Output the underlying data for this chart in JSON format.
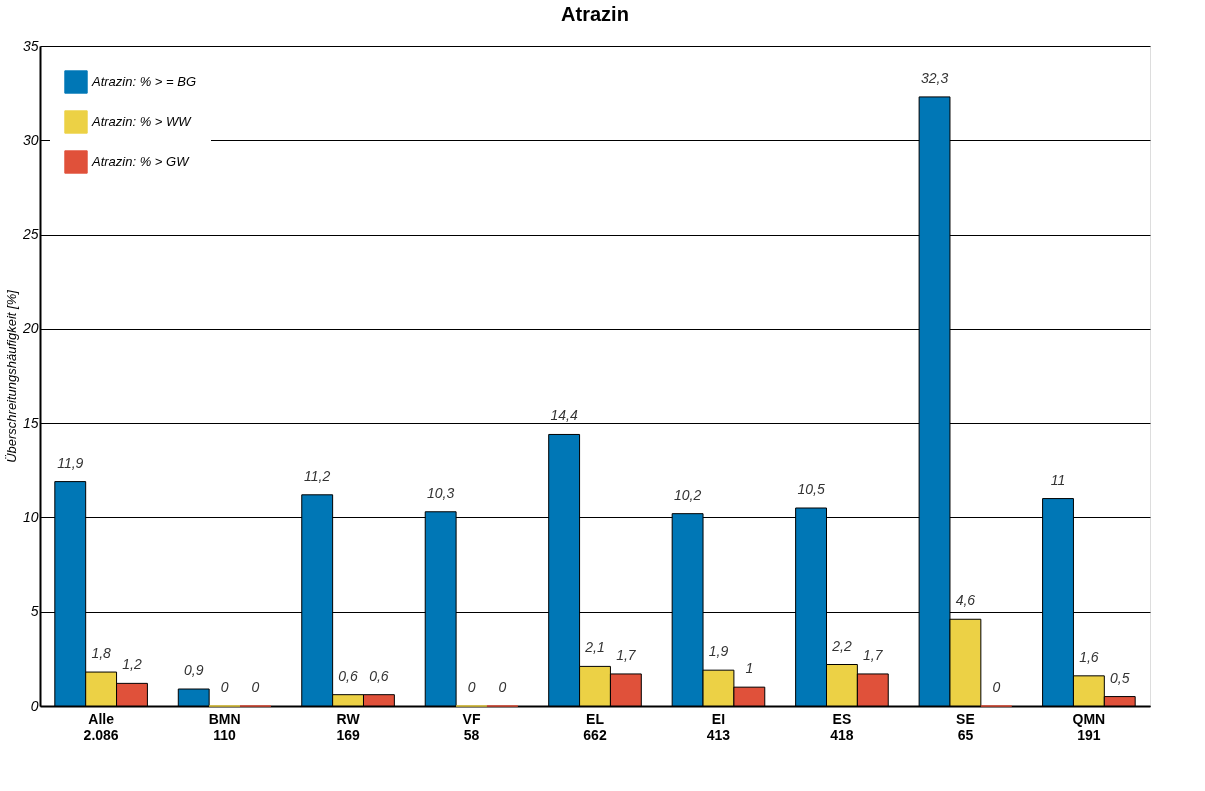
{
  "chart_data": {
    "type": "bar",
    "title": "Atrazin",
    "ylabel": "Überschreitungshäufigkeit [%]",
    "categories": [
      "Alle\n2.086",
      "BMN\n110",
      "RW\n169",
      "VF\n58",
      "EL\n662",
      "EI\n413",
      "ES\n418",
      "SE\n65",
      "QMN\n191"
    ],
    "series": [
      {
        "name": "Atrazin: % > = BG",
        "color": "#0077b6",
        "values": [
          11.9,
          0.9,
          11.2,
          10.3,
          14.4,
          10.2,
          10.5,
          32.3,
          11
        ],
        "value_labels": [
          "11,9",
          "0,9",
          "11,2",
          "10,3",
          "14,4",
          "10,2",
          "10,5",
          "32,3",
          "11"
        ]
      },
      {
        "name": "Atrazin: % > WW",
        "color": "#ecd145",
        "values": [
          1.8,
          0,
          0.6,
          0,
          2.1,
          1.9,
          2.2,
          4.6,
          1.6
        ],
        "value_labels": [
          "1,8",
          "0",
          "0,6",
          "0",
          "2,1",
          "1,9",
          "2,2",
          "4,6",
          "1,6"
        ]
      },
      {
        "name": "Atrazin: % > GW",
        "color": "#e0513a",
        "values": [
          1.2,
          0,
          0.6,
          0,
          1.7,
          1,
          1.7,
          0,
          0.5
        ],
        "value_labels": [
          "1,2",
          "0",
          "0,6",
          "0",
          "1,7",
          "1",
          "1,7",
          "0",
          "0,5"
        ]
      }
    ],
    "ylim": [
      0,
      35
    ],
    "yticks": [
      0,
      5,
      10,
      15,
      20,
      25,
      30,
      35
    ],
    "grid": "y",
    "legend": "top left"
  }
}
